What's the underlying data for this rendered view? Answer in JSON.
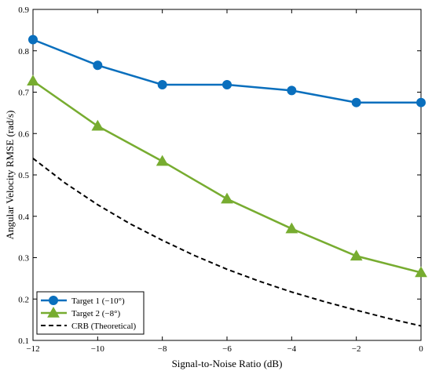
{
  "chart_data": {
    "type": "line",
    "xlabel": "Signal-to-Noise Ratio (dB)",
    "ylabel": "Angular Velocity RMSE (rad/s)",
    "xlim": [
      -12,
      0
    ],
    "ylim": [
      0.1,
      0.9
    ],
    "xticks": [
      -12,
      -10,
      -8,
      -6,
      -4,
      -2,
      0
    ],
    "yticks": [
      0.1,
      0.2,
      0.3,
      0.4,
      0.5,
      0.6,
      0.7,
      0.8,
      0.9
    ],
    "xtick_labels": [
      "−12",
      "−10",
      "−8",
      "−6",
      "−4",
      "−2",
      "0"
    ],
    "ytick_labels": [
      "0.1",
      "0.2",
      "0.3",
      "0.4",
      "0.5",
      "0.6",
      "0.7",
      "0.8",
      "0.9"
    ],
    "grid": false,
    "legend_position": "bottom-left",
    "series": [
      {
        "name": "Target 1 (−10°)",
        "color": "#0a6fbd",
        "marker": "circle",
        "line_style": "solid",
        "x": [
          -12,
          -10,
          -8,
          -6,
          -4,
          -2,
          0
        ],
        "y": [
          0.827,
          0.765,
          0.718,
          0.718,
          0.704,
          0.675,
          0.675
        ]
      },
      {
        "name": "Target 2 (−8°)",
        "color": "#77ac30",
        "marker": "triangle",
        "line_style": "solid",
        "x": [
          -12,
          -10,
          -8,
          -6,
          -4,
          -2,
          0
        ],
        "y": [
          0.727,
          0.618,
          0.533,
          0.442,
          0.37,
          0.304,
          0.264
        ]
      },
      {
        "name": "CRB (Theoretical)",
        "color": "#000000",
        "marker": "none",
        "line_style": "dashed",
        "x": [
          -12,
          -11,
          -10,
          -9,
          -8,
          -7,
          -6,
          -5,
          -4,
          -3,
          -2,
          -1,
          0
        ],
        "y": [
          0.54,
          0.48,
          0.428,
          0.382,
          0.342,
          0.305,
          0.272,
          0.243,
          0.217,
          0.194,
          0.173,
          0.153,
          0.135
        ]
      }
    ]
  }
}
